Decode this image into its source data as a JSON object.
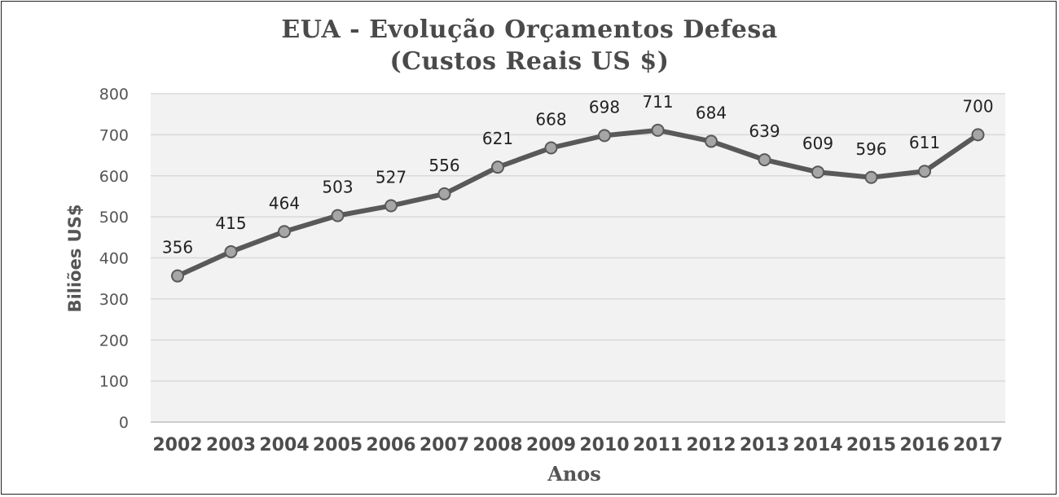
{
  "chart_data": {
    "type": "line",
    "title": "EUA - Evolução Orçamentos Defesa",
    "subtitle": "(Custos Reais US $)",
    "xlabel": "Anos",
    "ylabel": "Biliões US$",
    "categories": [
      "2002",
      "2003",
      "2004",
      "2005",
      "2006",
      "2007",
      "2008",
      "2009",
      "2010",
      "2011",
      "2012",
      "2013",
      "2014",
      "2015",
      "2016",
      "2017"
    ],
    "series": [
      {
        "values": [
          356,
          415,
          464,
          503,
          527,
          556,
          621,
          668,
          698,
          711,
          684,
          639,
          609,
          596,
          611,
          700
        ]
      }
    ],
    "ylim": [
      0,
      800
    ],
    "yticks": [
      0,
      100,
      200,
      300,
      400,
      500,
      600,
      700,
      800
    ],
    "grid": true,
    "legend": "none",
    "colors": {
      "line": "#595959",
      "marker_fill": "#a6a6a6",
      "marker_stroke": "#595959",
      "plot_background": "#f2f2f2",
      "gridline": "#d9d9d9"
    }
  }
}
